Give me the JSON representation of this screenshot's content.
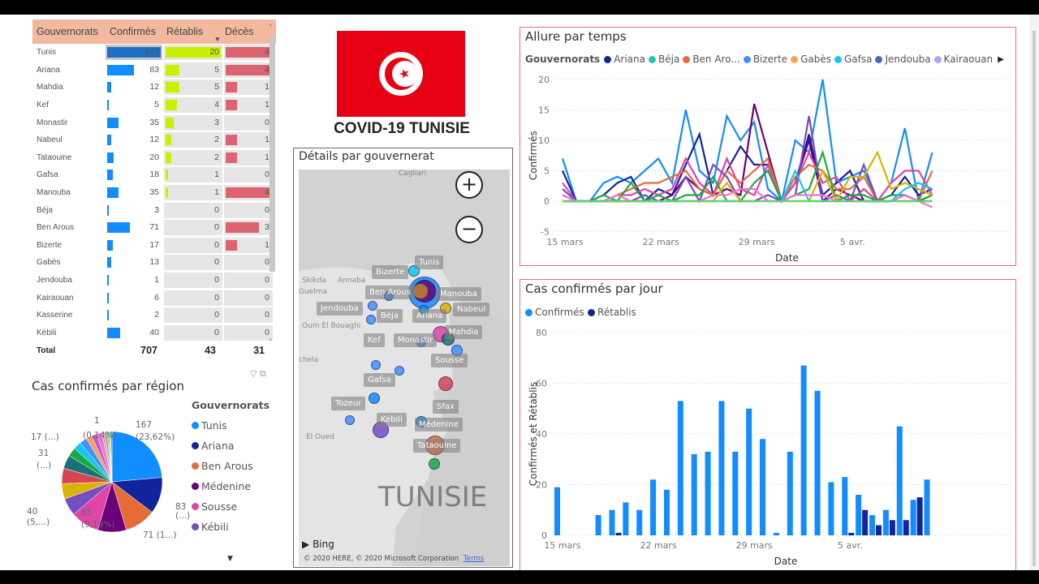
{
  "table": {
    "headers": [
      "Gouvernorats",
      "Confirmés",
      "Rétablis",
      "Décès"
    ],
    "rows": [
      [
        "Tunis",
        167,
        20,
        4
      ],
      [
        "Ariana",
        83,
        5,
        4
      ],
      [
        "Mahdia",
        12,
        5,
        1
      ],
      [
        "Kef",
        5,
        4,
        1
      ],
      [
        "Monastir",
        35,
        3,
        0
      ],
      [
        "Nabeul",
        12,
        2,
        1
      ],
      [
        "Tataouine",
        20,
        2,
        1
      ],
      [
        "Gafsa",
        18,
        1,
        0
      ],
      [
        "Manouba",
        35,
        1,
        4
      ],
      [
        "Béja",
        3,
        0,
        0
      ],
      [
        "Ben Arous",
        71,
        0,
        3
      ],
      [
        "Bizerte",
        17,
        0,
        1
      ],
      [
        "Gabès",
        13,
        0,
        0
      ],
      [
        "Jendouba",
        1,
        0,
        0
      ],
      [
        "Kairaouan",
        6,
        0,
        0
      ],
      [
        "Kasserine",
        2,
        0,
        0
      ],
      [
        "Kébili",
        40,
        0,
        0
      ]
    ],
    "total_label": "Total",
    "totals": [
      707,
      43,
      31
    ],
    "colors": {
      "header": "#F2B8A0",
      "confirmes": "#118DFF",
      "confirmes_selected": "#1F6FC5",
      "retablis": "#C8F000",
      "deces": "#DB6470"
    }
  },
  "header": {
    "title": "COVID-19 TUNISIE",
    "flag_colors": {
      "red": "#E70013",
      "white": "#FFFFFF"
    }
  },
  "pie": {
    "title": "Cas confirmés par région",
    "legend_title": "Gouvernorats",
    "legend": [
      {
        "name": "Tunis",
        "color": "#118DFF"
      },
      {
        "name": "Ariana",
        "color": "#12239E"
      },
      {
        "name": "Ben Arous",
        "color": "#E66C37"
      },
      {
        "name": "Médenine",
        "color": "#6B007B"
      },
      {
        "name": "Sousse",
        "color": "#E044A7"
      },
      {
        "name": "Kébili",
        "color": "#744EC2"
      }
    ],
    "labels": [
      "167",
      "(23,62%)",
      "83",
      "(...)",
      "71 (1...)",
      "65",
      "(9,19%)",
      "40",
      "(5,...)",
      "31",
      "(...)",
      "17 (...)",
      "(0,14%)",
      "1"
    ]
  },
  "chart_data": [
    {
      "type": "pie",
      "title": "Cas confirmés par région",
      "slices": [
        {
          "name": "Tunis",
          "value": 167,
          "color": "#118DFF"
        },
        {
          "name": "Ariana",
          "value": 83,
          "color": "#12239E"
        },
        {
          "name": "Ben Arous",
          "value": 71,
          "color": "#E66C37"
        },
        {
          "name": "Médenine",
          "value": 65,
          "color": "#6B007B"
        },
        {
          "name": "Sousse",
          "value": 65,
          "color": "#E044A7"
        },
        {
          "name": "Kébili",
          "value": 40,
          "color": "#744EC2"
        },
        {
          "value": 35,
          "color": "#D9B300"
        },
        {
          "value": 35,
          "color": "#D64550"
        },
        {
          "value": 31,
          "color": "#197278"
        },
        {
          "value": 20,
          "color": "#1AAB40"
        },
        {
          "value": 18,
          "color": "#15C6F4"
        },
        {
          "value": 17,
          "color": "#4092FF"
        },
        {
          "value": 13,
          "color": "#FFA058"
        },
        {
          "value": 12,
          "color": "#BE5DC9"
        },
        {
          "value": 12,
          "color": "#F472D0"
        },
        {
          "value": 6,
          "color": "#B5A1FF"
        },
        {
          "value": 5,
          "color": "#C4A200"
        },
        {
          "value": 3,
          "color": "#FF8080"
        },
        {
          "value": 3,
          "color": "#00DBBC"
        },
        {
          "value": 2,
          "color": "#5BD667"
        },
        {
          "value": 1,
          "color": "#0091D5"
        },
        {
          "value": 3,
          "color": "#4668C5"
        }
      ]
    },
    {
      "type": "line",
      "title": "Allure par temps",
      "legend_title": "Gouvernorats",
      "legend": [
        {
          "name": "Ariana",
          "color": "#12239E"
        },
        {
          "name": "Béja",
          "color": "#1DC7A8"
        },
        {
          "name": "Ben Aro...",
          "color": "#E66C37"
        },
        {
          "name": "Bizerte",
          "color": "#4092FF"
        },
        {
          "name": "Gabès",
          "color": "#FFA058"
        },
        {
          "name": "Gafsa",
          "color": "#15C6F4"
        },
        {
          "name": "Jendouba",
          "color": "#4668C5"
        },
        {
          "name": "Kairaouan",
          "color": "#B5A1FF"
        }
      ],
      "xlabel": "Date",
      "ylabel": "Confirmés",
      "ylim": [
        -5,
        20
      ],
      "yticks": [
        -5,
        0,
        5,
        10,
        15,
        20
      ],
      "xticks": [
        "15 mars",
        "22 mars",
        "29 mars",
        "5 avr."
      ],
      "x_start": "15 mars",
      "x_end": "11 avr.",
      "series": [
        {
          "color": "#118DFF",
          "values": [
            7,
            0,
            0,
            3,
            4,
            3,
            5,
            7,
            3,
            15,
            5,
            3,
            14,
            10,
            13,
            2,
            0,
            10,
            8,
            20,
            3,
            4,
            5,
            0,
            3,
            12,
            0,
            8
          ]
        },
        {
          "name": "Ariana",
          "color": "#12239E",
          "values": [
            5,
            0,
            0,
            1,
            3,
            4,
            0,
            2,
            1,
            6,
            11,
            1,
            5,
            9,
            6,
            6,
            0,
            3,
            11,
            1,
            3,
            5,
            0,
            0,
            1,
            4,
            1,
            2
          ]
        },
        {
          "color": "#6B007B",
          "values": [
            0,
            0,
            0,
            0,
            0,
            0,
            0,
            0,
            1,
            4,
            2,
            1,
            2,
            1,
            16,
            8,
            0,
            3,
            10,
            0,
            2,
            1,
            0,
            0,
            0,
            1,
            0,
            1
          ]
        },
        {
          "color": "#E044A7",
          "values": [
            3,
            0,
            0,
            0,
            1,
            1,
            2,
            1,
            2,
            7,
            3,
            1,
            7,
            2,
            1,
            6,
            0,
            3,
            8,
            3,
            4,
            0,
            2,
            0,
            3,
            5,
            5,
            1
          ]
        },
        {
          "name": "Ben Aro...",
          "color": "#E66C37",
          "values": [
            0,
            0,
            0,
            0,
            1,
            2,
            3,
            3,
            4,
            5,
            2,
            1,
            5,
            3,
            5,
            7,
            0,
            4,
            6,
            5,
            2,
            2,
            4,
            0,
            0,
            0,
            0,
            5
          ]
        },
        {
          "color": "#744EC2",
          "values": [
            2,
            0,
            0,
            0,
            0,
            0,
            1,
            0,
            0,
            4,
            0,
            6,
            4,
            0,
            0,
            1,
            0,
            1,
            14,
            0,
            1,
            0,
            6,
            0,
            1,
            1,
            0,
            0
          ]
        },
        {
          "color": "#1AAB40",
          "values": [
            0,
            0,
            0,
            1,
            0,
            3,
            0,
            1,
            0,
            1,
            1,
            4,
            0,
            0,
            3,
            5,
            0,
            1,
            2,
            8,
            0,
            1,
            1,
            0,
            1,
            1,
            0,
            1
          ]
        },
        {
          "color": "#D9B300",
          "values": [
            0,
            0,
            0,
            0,
            0,
            0,
            0,
            0,
            0,
            0,
            0,
            0,
            3,
            0,
            0,
            0,
            0,
            0,
            0,
            5,
            0,
            4,
            4,
            8,
            2,
            3,
            2,
            1
          ]
        },
        {
          "color": "#15C6F4",
          "values": [
            1,
            0,
            0,
            0,
            0,
            0,
            0,
            0,
            0,
            0,
            0,
            0,
            0,
            0,
            0,
            0,
            0,
            5,
            0,
            0,
            0,
            0,
            0,
            0,
            0,
            2,
            3,
            2
          ]
        },
        {
          "color": "#F472D0",
          "values": [
            1,
            0,
            0,
            0,
            1,
            0,
            0,
            0,
            0,
            0,
            0,
            1,
            1,
            2,
            2,
            0,
            0,
            1,
            1,
            1,
            0,
            0,
            0,
            0,
            0,
            1,
            0,
            -1
          ]
        },
        {
          "color": "#5BD667",
          "values": [
            0,
            0,
            0,
            0,
            0,
            0,
            0,
            0,
            0,
            0,
            0,
            0,
            0,
            0,
            0,
            0,
            0,
            0,
            0,
            0,
            0,
            0,
            0,
            0,
            0,
            0,
            0,
            0
          ]
        }
      ]
    },
    {
      "type": "bar",
      "title": "Cas confirmés par jour",
      "xlabel": "Date",
      "ylabel": "Confirmés et Rétablis",
      "ylim": [
        0,
        80
      ],
      "yticks": [
        0,
        20,
        40,
        60,
        80
      ],
      "xticks": [
        "15 mars",
        "22 mars",
        "29 mars",
        "5 avr."
      ],
      "x_start": "15 mars",
      "x_end": "11 avr.",
      "series": [
        {
          "name": "Confirmés",
          "color": "#118DFF",
          "values": [
            19,
            0,
            0,
            8,
            10,
            13,
            10,
            22,
            18,
            53,
            32,
            33,
            53,
            33,
            50,
            38,
            1,
            33,
            67,
            57,
            21,
            23,
            16,
            8,
            10,
            43,
            14,
            22
          ]
        },
        {
          "name": "Rétablis",
          "color": "#12239E",
          "values": [
            0,
            0,
            0,
            0,
            1,
            0,
            0,
            0,
            0,
            0,
            0,
            0,
            0,
            0,
            0,
            0,
            0,
            0,
            0,
            0,
            0,
            1,
            10,
            4,
            6,
            6,
            15,
            0
          ]
        }
      ]
    }
  ],
  "map": {
    "title": "Détails par gouvernerat",
    "zoom_in": "+",
    "zoom_out": "−",
    "region_label": "TUNISIE",
    "base_labels": [
      "Cagliari",
      "Skikda",
      "Annaba",
      "Guelma",
      "Oum El Bouaghi",
      "chela",
      "El Oued"
    ],
    "labels": [
      "Tunis",
      "Bizerte",
      "Ben Arous",
      "Manouba",
      "Nabeul",
      "Jendouba",
      "Béja",
      "Ariana",
      "Kef",
      "Monastir",
      "Mahdia",
      "Sousse",
      "Gafsa",
      "Tozeur",
      "Kébili",
      "Sfax",
      "Médenine",
      "Tataouine"
    ],
    "attribution": "© 2020 HERE, © 2020 Microsoft Corporation",
    "terms": "Terms",
    "bing": "Bing"
  }
}
